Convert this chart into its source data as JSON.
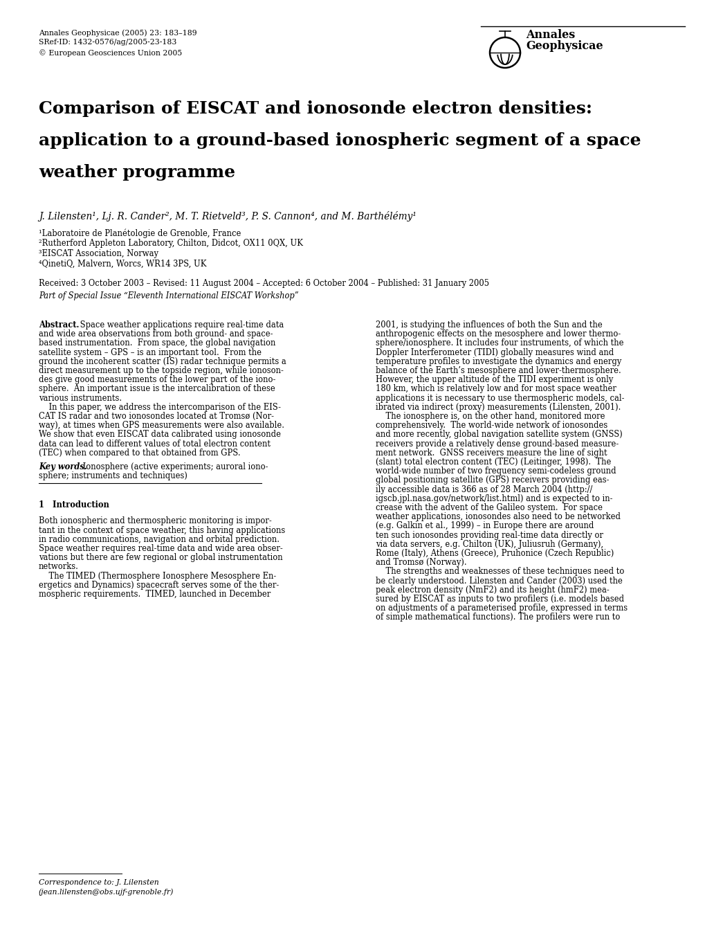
{
  "background_color": "#ffffff",
  "header_left": [
    "Annales Geophysicae (2005) 23: 183–189",
    "SRef-ID: 1432-0576/ag/2005-23-183",
    "© European Geosciences Union 2005"
  ],
  "title_lines": [
    "Comparison of EISCAT and ionosonde electron densities:",
    "application to a ground-based ionospheric segment of a space",
    "weather programme"
  ],
  "authors": "J. Lilensten¹, Lj. R. Cander², M. T. Rietveld³, P. S. Cannon⁴, and M. Barthélémy¹",
  "affiliations": [
    "¹Laboratoire de Planétologie de Grenoble, France",
    "²Rutherford Appleton Laboratory, Chilton, Didcot, OX11 0QX, UK",
    "³EISCAT Association, Norway",
    "⁴QinetiQ, Malvern, Worcs, WR14 3PS, UK"
  ],
  "received_line": "Received: 3 October 2003 – Revised: 11 August 2004 – Accepted: 6 October 2004 – Published: 31 January 2005",
  "special_issue": "Part of Special Issue “Eleventh International EISCAT Workshop”",
  "col1_lines": [
    [
      "bold",
      "Abstract."
    ],
    [
      "normal",
      " Space weather applications require real-time data"
    ],
    [
      "normal",
      "and wide area observations from both ground- and space-"
    ],
    [
      "normal",
      "based instrumentation.  From space, the global navigation"
    ],
    [
      "normal",
      "satellite system – GPS – is an important tool.  From the"
    ],
    [
      "normal",
      "ground the incoherent scatter (IS) radar technique permits a"
    ],
    [
      "normal",
      "direct measurement up to the topside region, while ionoson-"
    ],
    [
      "normal",
      "des give good measurements of the lower part of the iono-"
    ],
    [
      "normal",
      "sphere.  An important issue is the intercalibration of these"
    ],
    [
      "normal",
      "various instruments."
    ],
    [
      "normal",
      "    In this paper, we address the intercomparison of the EIS-"
    ],
    [
      "normal",
      "CAT IS radar and two ionosondes located at Tromsø (Nor-"
    ],
    [
      "normal",
      "way), at times when GPS measurements were also available."
    ],
    [
      "normal",
      "We show that even EISCAT data calibrated using ionosonde"
    ],
    [
      "normal",
      "data can lead to different values of total electron content"
    ],
    [
      "normal",
      "(TEC) when compared to that obtained from GPS."
    ],
    [
      "gap",
      ""
    ],
    [
      "bolditalic",
      "Key words."
    ],
    [
      "normal",
      " Ionosphere (active experiments; auroral iono-"
    ],
    [
      "normal",
      "sphere; instruments and techniques)"
    ],
    [
      "rule",
      ""
    ],
    [
      "gap2",
      ""
    ],
    [
      "bold",
      "1   Introduction"
    ],
    [
      "gap2",
      ""
    ],
    [
      "normal",
      "Both ionospheric and thermospheric monitoring is impor-"
    ],
    [
      "normal",
      "tant in the context of space weather, this having applications"
    ],
    [
      "normal",
      "in radio communications, navigation and orbital prediction."
    ],
    [
      "normal",
      "Space weather requires real-time data and wide area obser-"
    ],
    [
      "normal",
      "vations but there are few regional or global instrumentation"
    ],
    [
      "normal",
      "networks."
    ],
    [
      "normal",
      "    The TIMED (Thermosphere Ionosphere Mesosphere En-"
    ],
    [
      "normal",
      "ergetics and Dynamics) spacecraft serves some of the ther-"
    ],
    [
      "normal",
      "mospheric requirements.  TIMED, launched in December"
    ]
  ],
  "col2_lines": [
    [
      "normal",
      "2001, is studying the influences of both the Sun and the"
    ],
    [
      "normal",
      "anthropogenic effects on the mesosphere and lower thermo-"
    ],
    [
      "normal",
      "sphere/ionosphere. It includes four instruments, of which the"
    ],
    [
      "normal",
      "Doppler Interferometer (TIDI) globally measures wind and"
    ],
    [
      "normal",
      "temperature profiles to investigate the dynamics and energy"
    ],
    [
      "normal",
      "balance of the Earth’s mesosphere and lower-thermosphere."
    ],
    [
      "normal",
      "However, the upper altitude of the TIDI experiment is only"
    ],
    [
      "normal",
      "180 km, which is relatively low and for most space weather"
    ],
    [
      "normal",
      "applications it is necessary to use thermospheric models, cal-"
    ],
    [
      "normal",
      "ibrated via indirect (proxy) measurements (Lilensten, 2001)."
    ],
    [
      "normal",
      "    The ionosphere is, on the other hand, monitored more"
    ],
    [
      "normal",
      "comprehensively.  The world-wide network of ionosondes"
    ],
    [
      "normal",
      "and more recently, global navigation satellite system (GNSS)"
    ],
    [
      "normal",
      "receivers provide a relatively dense ground-based measure-"
    ],
    [
      "normal",
      "ment network.  GNSS receivers measure the line of sight"
    ],
    [
      "normal",
      "(slant) total electron content (TEC) (Leitinger, 1998).  The"
    ],
    [
      "normal",
      "world-wide number of two frequency semi-codeless ground"
    ],
    [
      "normal",
      "global positioning satellite (GPS) receivers providing eas-"
    ],
    [
      "normal",
      "ily accessible data is 366 as of 28 March 2004 (http://"
    ],
    [
      "normal",
      "igscb.jpl.nasa.gov/network/list.html) and is expected to in-"
    ],
    [
      "normal",
      "crease with the advent of the Galileo system.  For space"
    ],
    [
      "normal",
      "weather applications, ionosondes also need to be networked"
    ],
    [
      "normal",
      "(e.g. Galkin et al., 1999) – in Europe there are around"
    ],
    [
      "normal",
      "ten such ionosondes providing real-time data directly or"
    ],
    [
      "normal",
      "via data servers, e.g. Chilton (UK), Juliusruh (Germany),"
    ],
    [
      "normal",
      "Rome (Italy), Athens (Greece), Pruhonice (Czech Republic)"
    ],
    [
      "normal",
      "and Tromsø (Norway)."
    ],
    [
      "normal",
      "    The strengths and weaknesses of these techniques need to"
    ],
    [
      "normal",
      "be clearly understood. Lilensten and Cander (2003) used the"
    ],
    [
      "normal",
      "peak electron density (​NmF2) and its height (​hmF2) mea-"
    ],
    [
      "normal",
      "sured by EISCAT as inputs to two profilers (i.e. models based"
    ],
    [
      "normal",
      "on adjustments of a parameterised profile, expressed in terms"
    ],
    [
      "normal",
      "of simple mathematical functions). The profilers were run to"
    ]
  ],
  "correspondence_line1": "Correspondence to: J. Lilensten",
  "correspondence_line2": "(jean.lilensten@obs.ujf-grenoble.fr)"
}
